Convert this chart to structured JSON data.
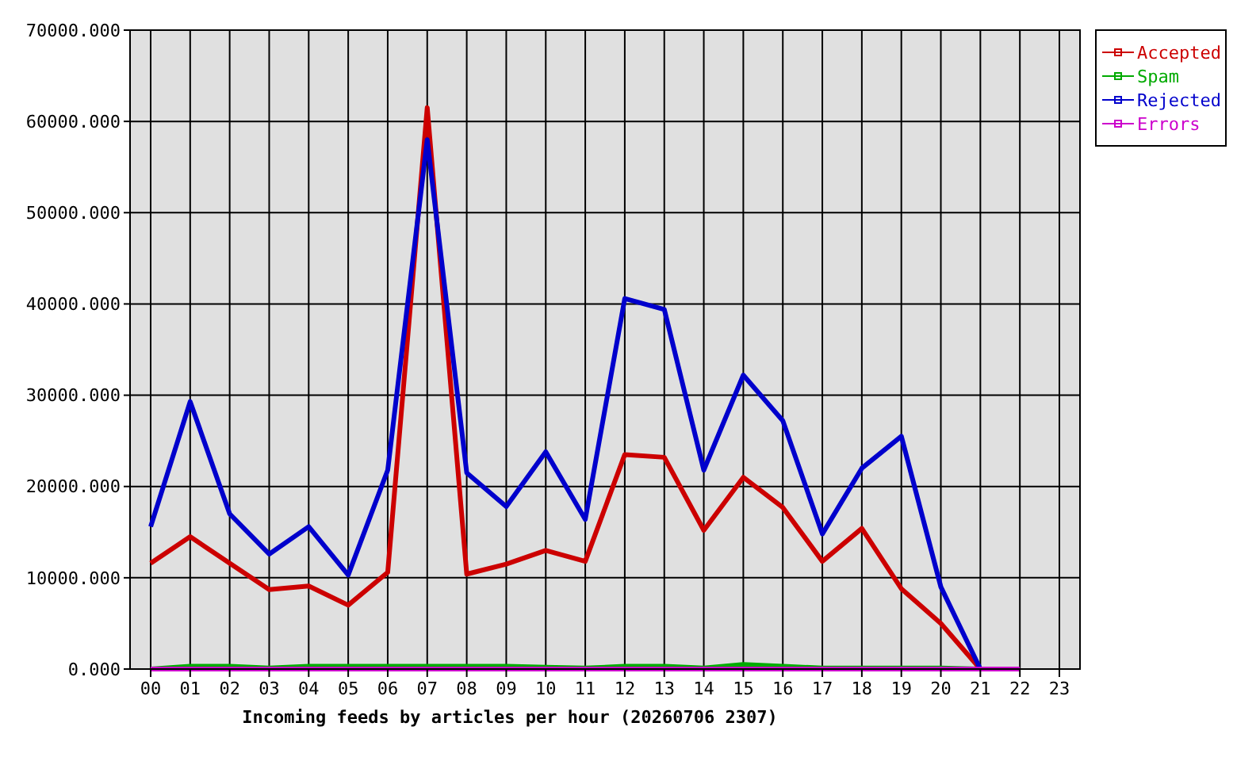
{
  "chart_data": {
    "type": "line",
    "xlabel": "Incoming feeds by articles per hour (20260706 2307)",
    "categories": [
      "00",
      "01",
      "02",
      "03",
      "04",
      "05",
      "06",
      "07",
      "08",
      "09",
      "10",
      "11",
      "12",
      "13",
      "14",
      "15",
      "16",
      "17",
      "18",
      "19",
      "20",
      "21",
      "22",
      "23"
    ],
    "series": [
      {
        "name": "Accepted",
        "color": "#cc0000",
        "values": [
          11600,
          14500,
          11600,
          8700,
          9100,
          7000,
          10600,
          61500,
          10400,
          11500,
          13000,
          11800,
          23500,
          23200,
          15200,
          21000,
          17700,
          11800,
          15400,
          8800,
          5000,
          0,
          null,
          null
        ]
      },
      {
        "name": "Spam",
        "color": "#00aa00",
        "values": [
          0,
          300,
          300,
          100,
          300,
          300,
          300,
          300,
          300,
          300,
          200,
          100,
          300,
          300,
          100,
          500,
          300,
          100,
          100,
          100,
          100,
          0,
          null,
          null
        ]
      },
      {
        "name": "Rejected",
        "color": "#0000cc",
        "values": [
          15600,
          29300,
          17000,
          12600,
          15600,
          10300,
          21800,
          58000,
          21500,
          17800,
          23800,
          16400,
          40600,
          39400,
          21800,
          32200,
          27200,
          14800,
          22000,
          25500,
          9000,
          0,
          null,
          null
        ]
      },
      {
        "name": "Errors",
        "color": "#cc00cc",
        "values": [
          0,
          0,
          0,
          0,
          0,
          0,
          0,
          0,
          0,
          0,
          0,
          0,
          0,
          0,
          0,
          0,
          0,
          0,
          0,
          0,
          0,
          0,
          0,
          null
        ]
      }
    ],
    "ylim": [
      0,
      70000
    ],
    "yticks": [
      {
        "value": 0,
        "label": "0.000"
      },
      {
        "value": 10000,
        "label": "10000.000"
      },
      {
        "value": 20000,
        "label": "20000.000"
      },
      {
        "value": 30000,
        "label": "30000.000"
      },
      {
        "value": 40000,
        "label": "40000.000"
      },
      {
        "value": 50000,
        "label": "50000.000"
      },
      {
        "value": 60000,
        "label": "60000.000"
      },
      {
        "value": 70000,
        "label": "70000.000"
      }
    ],
    "grid": true,
    "legend": "top right"
  }
}
